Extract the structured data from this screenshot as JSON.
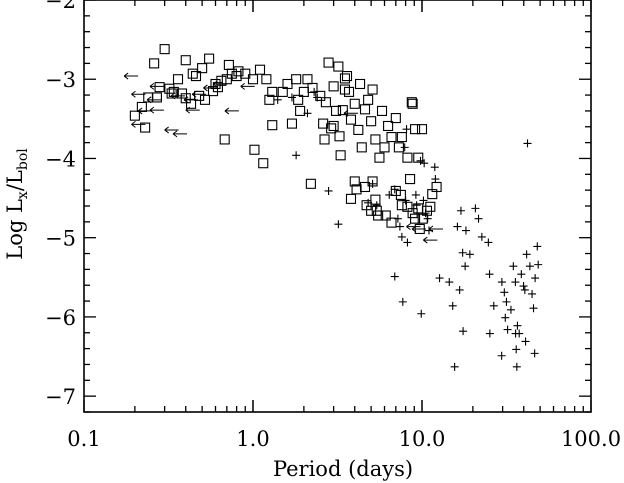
{
  "chart_data": {
    "type": "scatter",
    "xlabel": "Period (days)",
    "ylabel": {
      "prefix": "Log L",
      "sub1": "x",
      "mid": "/L",
      "sub2": "bol"
    },
    "xscale": "log",
    "xlim": [
      0.1,
      100.0
    ],
    "ylim": [
      -7.2,
      -2.0
    ],
    "x_ticks": [
      0.1,
      1.0,
      10.0,
      100.0
    ],
    "x_tick_labels": [
      "0.1",
      "1.0",
      "10.0",
      "100.0"
    ],
    "y_ticks": [
      -2,
      -3,
      -4,
      -5,
      -6,
      -7
    ],
    "y_tick_labels": [
      "−2",
      "−3",
      "−4",
      "−5",
      "−6",
      "−7"
    ],
    "grid": false,
    "legend": "none",
    "series": [
      {
        "marker": "open-square",
        "points": [
          [
            0.3,
            -2.62
          ],
          [
            0.26,
            -2.8
          ],
          [
            0.4,
            -2.76
          ],
          [
            0.55,
            -2.74
          ],
          [
            0.5,
            -2.86
          ],
          [
            0.36,
            -3.0
          ],
          [
            0.44,
            -2.93
          ],
          [
            0.32,
            -3.12
          ],
          [
            0.28,
            -3.1
          ],
          [
            0.22,
            -3.35
          ],
          [
            0.24,
            -3.23
          ],
          [
            0.27,
            -3.23
          ],
          [
            0.33,
            -3.18
          ],
          [
            0.38,
            -3.18
          ],
          [
            0.4,
            -3.24
          ],
          [
            0.43,
            -3.31
          ],
          [
            0.48,
            -3.21
          ],
          [
            0.52,
            -3.26
          ],
          [
            0.58,
            -3.15
          ],
          [
            0.62,
            -3.1
          ],
          [
            0.65,
            -3.02
          ],
          [
            0.7,
            -3.0
          ],
          [
            0.75,
            -2.93
          ],
          [
            0.82,
            -2.9
          ],
          [
            0.9,
            -2.93
          ],
          [
            0.2,
            -3.46
          ],
          [
            0.23,
            -3.61
          ],
          [
            0.34,
            -3.16
          ],
          [
            0.46,
            -2.96
          ],
          [
            0.6,
            -3.06
          ],
          [
            0.68,
            -3.76
          ],
          [
            0.72,
            -2.82
          ],
          [
            0.8,
            -2.96
          ],
          [
            1.0,
            -3.0
          ],
          [
            1.1,
            -2.88
          ],
          [
            1.2,
            -3.0
          ],
          [
            1.25,
            -3.26
          ],
          [
            1.3,
            -3.16
          ],
          [
            1.5,
            -3.16
          ],
          [
            1.6,
            -3.06
          ],
          [
            1.8,
            -3.0
          ],
          [
            1.85,
            -3.26
          ],
          [
            1.9,
            -3.4
          ],
          [
            2.0,
            -3.16
          ],
          [
            2.1,
            -3.0
          ],
          [
            1.3,
            -3.58
          ],
          [
            1.7,
            -3.56
          ],
          [
            1.02,
            -3.89
          ],
          [
            1.15,
            -4.06
          ],
          [
            2.25,
            -3.11
          ],
          [
            2.5,
            -3.21
          ],
          [
            2.7,
            -3.29
          ],
          [
            2.6,
            -3.56
          ],
          [
            2.65,
            -3.76
          ],
          [
            2.9,
            -3.62
          ],
          [
            3.0,
            -3.09
          ],
          [
            3.1,
            -3.4
          ],
          [
            3.25,
            -3.72
          ],
          [
            3.3,
            -3.96
          ],
          [
            3.4,
            -3.39
          ],
          [
            3.5,
            -3.13
          ],
          [
            3.6,
            -2.96
          ],
          [
            3.7,
            -3.16
          ],
          [
            3.8,
            -3.51
          ],
          [
            4.0,
            -3.31
          ],
          [
            4.2,
            -3.64
          ],
          [
            4.4,
            -3.86
          ],
          [
            4.6,
            -3.38
          ],
          [
            4.8,
            -3.26
          ],
          [
            5.0,
            -3.53
          ],
          [
            5.3,
            -3.76
          ],
          [
            5.6,
            -3.99
          ],
          [
            5.8,
            -3.4
          ],
          [
            6.0,
            -3.86
          ],
          [
            6.3,
            -3.59
          ],
          [
            6.6,
            -3.73
          ],
          [
            7.0,
            -3.49
          ],
          [
            7.3,
            -3.86
          ],
          [
            7.6,
            -3.73
          ],
          [
            8.2,
            -3.99
          ],
          [
            8.8,
            -3.31
          ],
          [
            9.1,
            -3.63
          ],
          [
            9.5,
            -3.99
          ],
          [
            10.0,
            -3.63
          ],
          [
            2.8,
            -2.79
          ],
          [
            3.5,
            -2.99
          ],
          [
            3.2,
            -2.84
          ],
          [
            4.3,
            -3.06
          ],
          [
            5.1,
            -3.13
          ],
          [
            3.0,
            -3.59
          ],
          [
            2.2,
            -4.32
          ],
          [
            4.0,
            -4.29
          ],
          [
            4.1,
            -4.39
          ],
          [
            3.8,
            -4.51
          ],
          [
            4.6,
            -4.36
          ],
          [
            5.1,
            -4.29
          ],
          [
            5.3,
            -4.52
          ],
          [
            4.7,
            -4.59
          ],
          [
            5.0,
            -4.66
          ],
          [
            5.4,
            -4.66
          ],
          [
            5.5,
            -4.72
          ],
          [
            6.1,
            -4.72
          ],
          [
            6.6,
            -4.81
          ],
          [
            7.0,
            -4.41
          ],
          [
            7.5,
            -4.46
          ],
          [
            8.2,
            -4.61
          ],
          [
            8.8,
            -4.69
          ],
          [
            9.1,
            -4.76
          ],
          [
            9.5,
            -4.63
          ],
          [
            10.1,
            -4.76
          ],
          [
            10.7,
            -4.66
          ],
          [
            11.2,
            -4.61
          ],
          [
            11.5,
            -4.45
          ],
          [
            12.2,
            -4.36
          ],
          [
            8.5,
            -4.26
          ],
          [
            7.6,
            -4.59
          ],
          [
            9.7,
            -4.89
          ],
          [
            8.7,
            -3.29
          ]
        ]
      },
      {
        "marker": "plus",
        "points": [
          [
            1.4,
            -3.26
          ],
          [
            1.7,
            -3.23
          ],
          [
            1.8,
            -3.96
          ],
          [
            2.1,
            -3.43
          ],
          [
            2.3,
            -3.16
          ],
          [
            2.4,
            -3.23
          ],
          [
            2.8,
            -4.41
          ],
          [
            3.2,
            -4.83
          ],
          [
            4.8,
            -4.56
          ],
          [
            5.1,
            -4.32
          ],
          [
            5.4,
            -4.59
          ],
          [
            6.4,
            -4.46
          ],
          [
            6.9,
            -4.39
          ],
          [
            7.2,
            -4.76
          ],
          [
            7.4,
            -4.86
          ],
          [
            7.6,
            -4.99
          ],
          [
            8.2,
            -5.06
          ],
          [
            8.0,
            -4.53
          ],
          [
            9.2,
            -4.46
          ],
          [
            9.3,
            -4.59
          ],
          [
            10.2,
            -4.53
          ],
          [
            10.5,
            -4.69
          ],
          [
            10.8,
            -4.76
          ],
          [
            11.0,
            -4.91
          ],
          [
            11.9,
            -4.11
          ],
          [
            12.0,
            -4.26
          ],
          [
            10.3,
            -4.06
          ],
          [
            9.8,
            -4.03
          ],
          [
            7.9,
            -3.86
          ],
          [
            8.1,
            -3.63
          ],
          [
            6.9,
            -5.49
          ],
          [
            7.7,
            -5.81
          ],
          [
            9.9,
            -5.96
          ],
          [
            12.7,
            -5.51
          ],
          [
            14.5,
            -5.56
          ],
          [
            15.2,
            -5.86
          ],
          [
            16.2,
            -4.86
          ],
          [
            17.0,
            -4.66
          ],
          [
            18.2,
            -4.91
          ],
          [
            17.4,
            -5.19
          ],
          [
            18.0,
            -5.36
          ],
          [
            16.7,
            -5.66
          ],
          [
            19.2,
            -5.21
          ],
          [
            20.7,
            -4.63
          ],
          [
            21.6,
            -4.76
          ],
          [
            22.6,
            -4.99
          ],
          [
            24.7,
            -5.06
          ],
          [
            25.1,
            -5.46
          ],
          [
            26.6,
            -5.86
          ],
          [
            29.7,
            -5.56
          ],
          [
            30.7,
            -5.69
          ],
          [
            31.6,
            -5.81
          ],
          [
            33.6,
            -5.91
          ],
          [
            34.7,
            -5.36
          ],
          [
            35.7,
            -5.56
          ],
          [
            36.7,
            -6.11
          ],
          [
            38.7,
            -5.46
          ],
          [
            39.9,
            -5.61
          ],
          [
            41.6,
            -5.21
          ],
          [
            43.5,
            -5.36
          ],
          [
            44.8,
            -5.71
          ],
          [
            45.7,
            -5.89
          ],
          [
            46.7,
            -5.51
          ],
          [
            48.1,
            -5.11
          ],
          [
            48.7,
            -5.34
          ],
          [
            41.0,
            -6.31
          ],
          [
            42.1,
            -3.81
          ],
          [
            35.8,
            -6.21
          ],
          [
            36.4,
            -6.63
          ],
          [
            29.6,
            -6.49
          ],
          [
            25.2,
            -6.21
          ],
          [
            17.5,
            -6.18
          ],
          [
            15.6,
            -6.63
          ],
          [
            31.1,
            -6.01
          ],
          [
            46.4,
            -6.46
          ],
          [
            37.6,
            -6.21
          ],
          [
            36.1,
            -6.41
          ],
          [
            40.6,
            -5.66
          ],
          [
            32.1,
            -6.16
          ]
        ]
      },
      {
        "marker": "left-arrow",
        "points": [
          [
            0.19,
            -2.96
          ],
          [
            0.21,
            -3.19
          ],
          [
            0.26,
            -3.26
          ],
          [
            0.27,
            -3.39
          ],
          [
            0.23,
            -3.4
          ],
          [
            0.21,
            -3.57
          ],
          [
            0.33,
            -3.64
          ],
          [
            0.37,
            -3.69
          ],
          [
            0.43,
            -3.26
          ],
          [
            0.48,
            -3.19
          ],
          [
            0.44,
            -3.39
          ],
          [
            0.56,
            -3.11
          ],
          [
            0.64,
            -3.06
          ],
          [
            0.75,
            -3.4
          ],
          [
            0.93,
            -3.09
          ],
          [
            0.27,
            -3.09
          ],
          [
            0.36,
            -3.21
          ],
          [
            3.8,
            -3.43
          ],
          [
            8.9,
            -4.86
          ],
          [
            9.6,
            -4.89
          ],
          [
            11.2,
            -5.03
          ],
          [
            12.1,
            -4.89
          ]
        ]
      }
    ]
  }
}
